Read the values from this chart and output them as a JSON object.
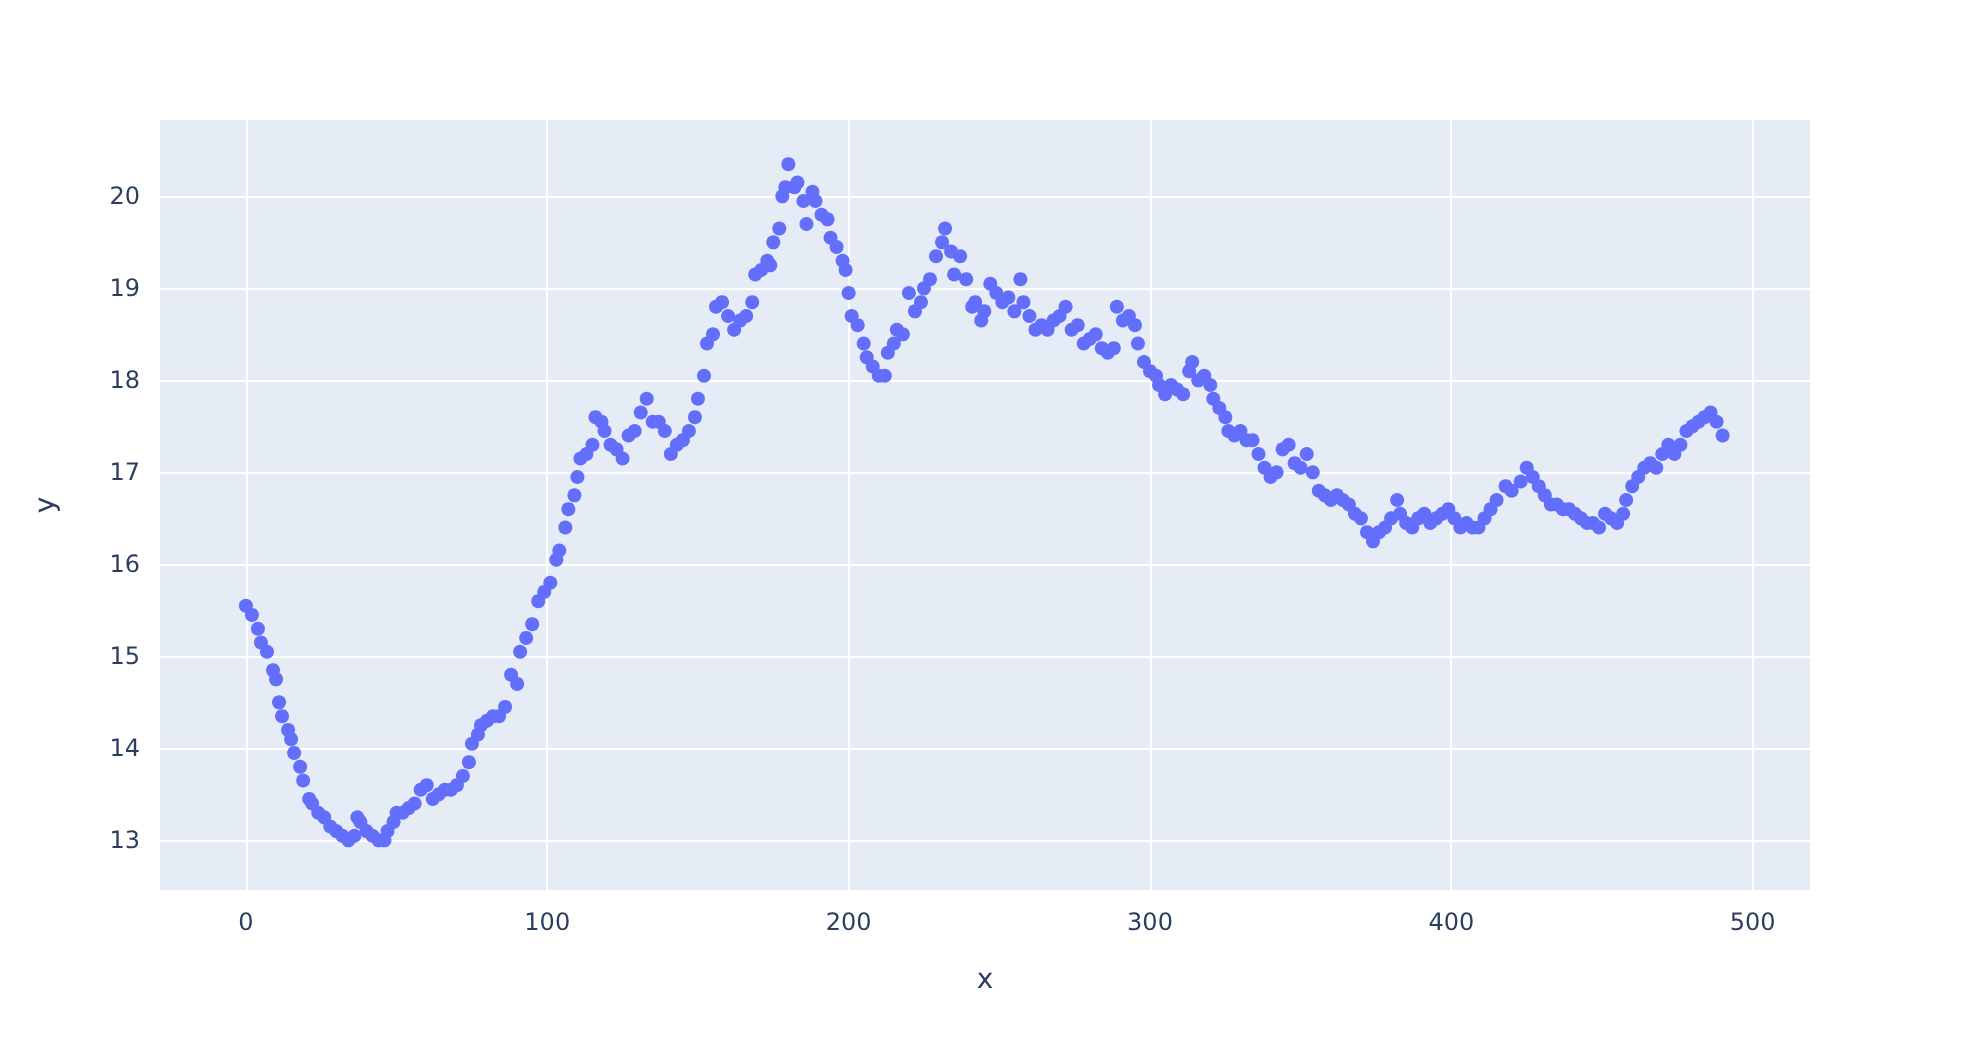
{
  "chart_data": {
    "type": "scatter",
    "xlabel": "x",
    "ylabel": "y",
    "color": "#636efa",
    "marker": "circle",
    "grid": true,
    "xlim": [
      -28.5,
      519
    ],
    "ylim": [
      12.46,
      20.83
    ],
    "xticks": [
      0,
      100,
      200,
      300,
      400,
      500
    ],
    "yticks": [
      13,
      14,
      15,
      16,
      17,
      18,
      19,
      20
    ],
    "x": [
      0,
      2,
      4,
      5,
      7,
      9,
      10,
      11,
      12,
      14,
      15,
      16,
      18,
      19,
      21,
      22,
      24,
      26,
      28,
      30,
      32,
      34,
      36,
      37,
      38,
      40,
      42,
      44,
      46,
      47,
      49,
      50,
      52,
      54,
      56,
      58,
      60,
      62,
      64,
      66,
      68,
      70,
      72,
      74,
      75,
      77,
      78,
      80,
      82,
      84,
      86,
      88,
      90,
      91,
      93,
      95,
      97,
      99,
      101,
      103,
      104,
      106,
      107,
      109,
      110,
      111,
      113,
      115,
      116,
      118,
      119,
      121,
      123,
      125,
      127,
      129,
      131,
      133,
      135,
      137,
      139,
      141,
      143,
      145,
      147,
      149,
      150,
      152,
      153,
      155,
      156,
      158,
      160,
      162,
      164,
      166,
      168,
      169,
      171,
      173,
      174,
      175,
      177,
      178,
      179,
      180,
      182,
      183,
      185,
      186,
      188,
      189,
      191,
      193,
      194,
      196,
      198,
      199,
      200,
      201,
      203,
      205,
      206,
      208,
      210,
      212,
      213,
      215,
      216,
      218,
      220,
      222,
      224,
      225,
      227,
      229,
      231,
      232,
      234,
      235,
      237,
      239,
      241,
      242,
      244,
      245,
      247,
      249,
      251,
      253,
      255,
      257,
      258,
      260,
      262,
      264,
      266,
      268,
      270,
      272,
      274,
      276,
      278,
      280,
      282,
      284,
      286,
      288,
      289,
      291,
      293,
      295,
      296,
      298,
      300,
      302,
      303,
      305,
      307,
      309,
      311,
      313,
      314,
      316,
      318,
      320,
      321,
      323,
      325,
      326,
      328,
      330,
      332,
      334,
      336,
      338,
      340,
      342,
      344,
      346,
      348,
      350,
      352,
      354,
      356,
      358,
      360,
      362,
      364,
      366,
      368,
      370,
      372,
      374,
      376,
      378,
      380,
      382,
      383,
      385,
      387,
      389,
      391,
      393,
      395,
      397,
      399,
      401,
      403,
      405,
      407,
      409,
      411,
      413,
      415,
      418,
      420,
      423,
      425,
      427,
      429,
      431,
      433,
      435,
      437,
      439,
      441,
      443,
      445,
      447,
      449,
      451,
      453,
      455,
      457,
      458,
      460,
      462,
      464,
      466,
      468,
      470,
      472,
      474,
      476,
      478,
      480,
      482,
      484,
      486,
      488,
      490
    ],
    "values": [
      15.55,
      15.45,
      15.3,
      15.15,
      15.05,
      14.85,
      14.75,
      14.5,
      14.35,
      14.2,
      14.1,
      13.95,
      13.8,
      13.65,
      13.45,
      13.4,
      13.3,
      13.25,
      13.15,
      13.1,
      13.05,
      13.0,
      13.05,
      13.25,
      13.2,
      13.1,
      13.05,
      13.0,
      13.0,
      13.1,
      13.2,
      13.3,
      13.3,
      13.35,
      13.4,
      13.55,
      13.6,
      13.45,
      13.5,
      13.55,
      13.55,
      13.6,
      13.7,
      13.85,
      14.05,
      14.15,
      14.25,
      14.3,
      14.35,
      14.35,
      14.45,
      14.8,
      14.7,
      15.05,
      15.2,
      15.35,
      15.6,
      15.7,
      15.8,
      16.05,
      16.15,
      16.4,
      16.6,
      16.75,
      16.95,
      17.15,
      17.2,
      17.3,
      17.6,
      17.55,
      17.45,
      17.3,
      17.25,
      17.15,
      17.4,
      17.45,
      17.65,
      17.8,
      17.55,
      17.55,
      17.45,
      17.2,
      17.3,
      17.35,
      17.45,
      17.6,
      17.8,
      18.05,
      18.4,
      18.5,
      18.8,
      18.85,
      18.7,
      18.55,
      18.65,
      18.7,
      18.85,
      19.15,
      19.2,
      19.3,
      19.25,
      19.5,
      19.65,
      20.0,
      20.1,
      20.35,
      20.1,
      20.15,
      19.95,
      19.7,
      20.05,
      19.95,
      19.8,
      19.75,
      19.55,
      19.45,
      19.3,
      19.2,
      18.95,
      18.7,
      18.6,
      18.4,
      18.25,
      18.15,
      18.05,
      18.05,
      18.3,
      18.4,
      18.55,
      18.5,
      18.95,
      18.75,
      18.85,
      19.0,
      19.1,
      19.35,
      19.5,
      19.65,
      19.4,
      19.15,
      19.35,
      19.1,
      18.8,
      18.85,
      18.65,
      18.75,
      19.05,
      18.95,
      18.85,
      18.9,
      18.75,
      19.1,
      18.85,
      18.7,
      18.55,
      18.6,
      18.55,
      18.65,
      18.7,
      18.8,
      18.55,
      18.6,
      18.4,
      18.45,
      18.5,
      18.35,
      18.3,
      18.35,
      18.8,
      18.65,
      18.7,
      18.6,
      18.4,
      18.2,
      18.1,
      18.05,
      17.95,
      17.85,
      17.95,
      17.9,
      17.85,
      18.1,
      18.2,
      18.0,
      18.05,
      17.95,
      17.8,
      17.7,
      17.6,
      17.45,
      17.4,
      17.45,
      17.35,
      17.35,
      17.2,
      17.05,
      16.95,
      17.0,
      17.25,
      17.3,
      17.1,
      17.05,
      17.2,
      17.0,
      16.8,
      16.75,
      16.7,
      16.75,
      16.7,
      16.65,
      16.55,
      16.5,
      16.35,
      16.25,
      16.35,
      16.4,
      16.5,
      16.7,
      16.55,
      16.45,
      16.4,
      16.5,
      16.55,
      16.45,
      16.5,
      16.55,
      16.6,
      16.5,
      16.4,
      16.45,
      16.4,
      16.4,
      16.5,
      16.6,
      16.7,
      16.85,
      16.8,
      16.9,
      17.05,
      16.95,
      16.85,
      16.75,
      16.65,
      16.65,
      16.6,
      16.6,
      16.55,
      16.5,
      16.45,
      16.45,
      16.4,
      16.55,
      16.5,
      16.45,
      16.55,
      16.7,
      16.85,
      16.95,
      17.05,
      17.1,
      17.05,
      17.2,
      17.3,
      17.2,
      17.3,
      17.45,
      17.5,
      17.55,
      17.6,
      17.65,
      17.55,
      17.4
    ]
  }
}
